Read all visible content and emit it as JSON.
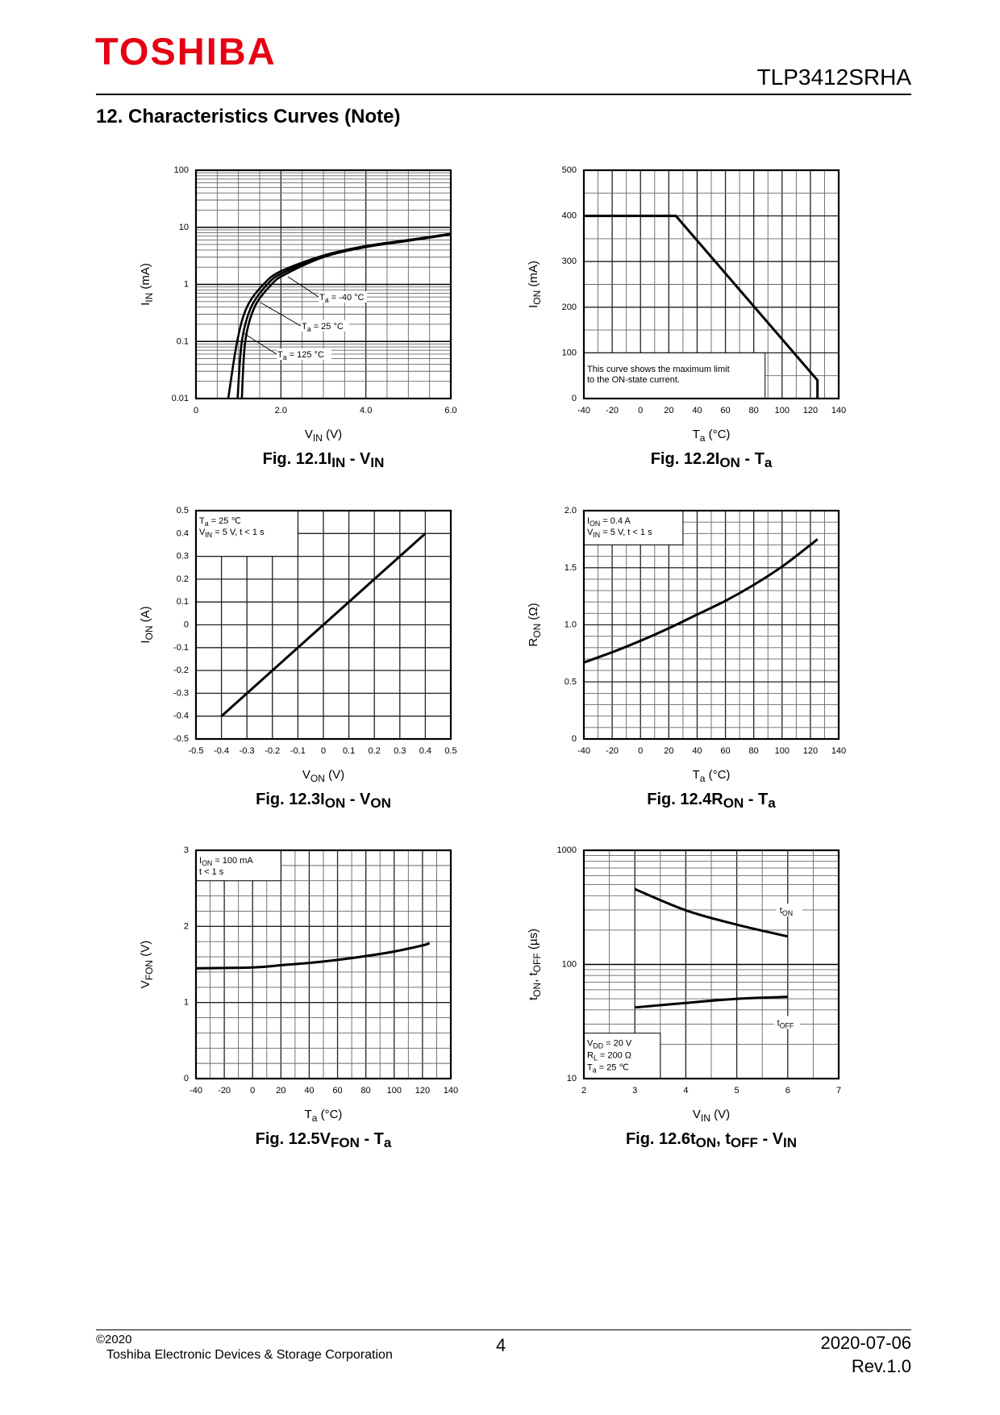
{
  "header": {
    "logo": "TOSHIBA",
    "part_number": "TLP3412SRHA",
    "section_title": "12. Characteristics Curves (Note)"
  },
  "footer": {
    "copyright": "©2020",
    "company": "Toshiba Electronic Devices & Storage Corporation",
    "page": "4",
    "date": "2020-07-06",
    "revision": "Rev.1.0"
  },
  "chart_data": [
    {
      "type": "line",
      "fig": "Fig. 12.1",
      "caption": [
        {
          "t": "I"
        },
        {
          "t": "IN",
          "sub": true
        },
        {
          "t": " - V"
        },
        {
          "t": "IN",
          "sub": true
        }
      ],
      "xlabel": [
        {
          "t": "V"
        },
        {
          "t": "IN",
          "sub": true
        },
        {
          "t": "  (V)"
        }
      ],
      "ylabel": [
        {
          "t": "I"
        },
        {
          "t": "IN",
          "sub": true
        },
        {
          "t": "  (mA)"
        }
      ],
      "xlim": [
        0,
        6
      ],
      "ylim": [
        0.01,
        100
      ],
      "yscale": "log",
      "grid": true,
      "x_ticks": [
        {
          "v": 0,
          "label": "0"
        },
        {
          "v": 2,
          "label": "2.0"
        },
        {
          "v": 4,
          "label": "4.0"
        },
        {
          "v": 6,
          "label": "6.0"
        }
      ],
      "y_ticks": [
        {
          "v": 0.01,
          "label": "0.01"
        },
        {
          "v": 0.1,
          "label": "0.1"
        },
        {
          "v": 1,
          "label": "1"
        },
        {
          "v": 10,
          "label": "10"
        },
        {
          "v": 100,
          "label": "100"
        }
      ],
      "series": [
        {
          "name": [
            {
              "t": "T"
            },
            {
              "t": "a",
              "sub": true
            },
            {
              "t": " = -40 °C"
            }
          ],
          "points": [
            [
              1.08,
              0.01
            ],
            [
              1.16,
              0.1
            ],
            [
              1.38,
              0.4
            ],
            [
              1.78,
              1
            ],
            [
              2.1,
              1.5
            ],
            [
              3,
              3.0
            ],
            [
              4,
              4.5
            ],
            [
              5,
              5.8
            ],
            [
              6,
              7.5
            ]
          ]
        },
        {
          "name": [
            {
              "t": "T"
            },
            {
              "t": "a",
              "sub": true
            },
            {
              "t": " = 25 °C"
            }
          ],
          "points": [
            [
              0.98,
              0.01
            ],
            [
              1.08,
              0.1
            ],
            [
              1.3,
              0.4
            ],
            [
              1.68,
              1
            ],
            [
              2.05,
              1.6
            ],
            [
              3,
              3.1
            ],
            [
              4,
              4.6
            ],
            [
              5,
              5.9
            ],
            [
              6,
              7.6
            ]
          ]
        },
        {
          "name": [
            {
              "t": "T"
            },
            {
              "t": "a",
              "sub": true
            },
            {
              "t": " = 125 °C"
            }
          ],
          "points": [
            [
              0.76,
              0.01
            ],
            [
              0.97,
              0.1
            ],
            [
              1.2,
              0.4
            ],
            [
              1.59,
              1
            ],
            [
              2,
              1.7
            ],
            [
              3,
              3.2
            ],
            [
              4,
              4.7
            ],
            [
              5,
              6.0
            ],
            [
              6,
              7.7
            ]
          ]
        }
      ]
    },
    {
      "type": "line",
      "fig": "Fig. 12.2",
      "caption": [
        {
          "t": "I"
        },
        {
          "t": "ON",
          "sub": true
        },
        {
          "t": " - T"
        },
        {
          "t": "a",
          "sub": true
        }
      ],
      "xlabel": [
        {
          "t": "T"
        },
        {
          "t": "a",
          "sub": true
        },
        {
          "t": "  (°C)"
        }
      ],
      "ylabel": [
        {
          "t": "I"
        },
        {
          "t": "ON",
          "sub": true
        },
        {
          "t": "  (mA)"
        }
      ],
      "xlim": [
        -40,
        140
      ],
      "ylim": [
        0,
        500
      ],
      "yscale": "linear",
      "grid": true,
      "x_ticks": [
        {
          "v": -40,
          "label": "-40"
        },
        {
          "v": -20,
          "label": "-20"
        },
        {
          "v": 0,
          "label": "0"
        },
        {
          "v": 20,
          "label": "20"
        },
        {
          "v": 40,
          "label": "40"
        },
        {
          "v": 60,
          "label": "60"
        },
        {
          "v": 80,
          "label": "80"
        },
        {
          "v": 100,
          "label": "100"
        },
        {
          "v": 120,
          "label": "120"
        },
        {
          "v": 140,
          "label": "140"
        }
      ],
      "y_ticks": [
        {
          "v": 0,
          "label": "0"
        },
        {
          "v": 100,
          "label": "100"
        },
        {
          "v": 200,
          "label": "200"
        },
        {
          "v": 300,
          "label": "300"
        },
        {
          "v": 400,
          "label": "400"
        },
        {
          "v": 500,
          "label": "500"
        }
      ],
      "note": [
        "This curve shows the maximum limit",
        "to the ON-state current."
      ],
      "series": [
        {
          "points": [
            [
              -40,
              400
            ],
            [
              25,
              400
            ],
            [
              125,
              40
            ],
            [
              125,
              0
            ]
          ]
        }
      ]
    },
    {
      "type": "line",
      "fig": "Fig. 12.3",
      "caption": [
        {
          "t": "I"
        },
        {
          "t": "ON",
          "sub": true
        },
        {
          "t": " - V"
        },
        {
          "t": "ON",
          "sub": true
        }
      ],
      "xlabel": [
        {
          "t": "V"
        },
        {
          "t": "ON",
          "sub": true
        },
        {
          "t": "  (V)"
        }
      ],
      "ylabel": [
        {
          "t": "I"
        },
        {
          "t": "ON",
          "sub": true
        },
        {
          "t": "  (A)"
        }
      ],
      "xlim": [
        -0.5,
        0.5
      ],
      "ylim": [
        -0.5,
        0.5
      ],
      "yscale": "linear",
      "grid": true,
      "x_ticks": [
        {
          "v": -0.5,
          "label": "-0.5"
        },
        {
          "v": -0.4,
          "label": "-0.4"
        },
        {
          "v": -0.3,
          "label": "-0.3"
        },
        {
          "v": -0.2,
          "label": "-0.2"
        },
        {
          "v": -0.1,
          "label": "-0.1"
        },
        {
          "v": 0,
          "label": "0"
        },
        {
          "v": 0.1,
          "label": "0.1"
        },
        {
          "v": 0.2,
          "label": "0.2"
        },
        {
          "v": 0.3,
          "label": "0.3"
        },
        {
          "v": 0.4,
          "label": "0.4"
        },
        {
          "v": 0.5,
          "label": "0.5"
        }
      ],
      "y_ticks": [
        {
          "v": -0.5,
          "label": "-0.5"
        },
        {
          "v": -0.4,
          "label": "-0.4"
        },
        {
          "v": -0.3,
          "label": "-0.3"
        },
        {
          "v": -0.2,
          "label": "-0.2"
        },
        {
          "v": -0.1,
          "label": "-0.1"
        },
        {
          "v": 0,
          "label": "0"
        },
        {
          "v": 0.1,
          "label": "0.1"
        },
        {
          "v": 0.2,
          "label": "0.2"
        },
        {
          "v": 0.3,
          "label": "0.3"
        },
        {
          "v": 0.4,
          "label": "0.4"
        },
        {
          "v": 0.5,
          "label": "0.5"
        }
      ],
      "conditions": [
        [
          {
            "t": "T"
          },
          {
            "t": "a",
            "sub": true
          },
          {
            "t": " = 25 ℃"
          }
        ],
        [
          {
            "t": "V"
          },
          {
            "t": "IN",
            "sub": true
          },
          {
            "t": " = 5 V, t < 1 s"
          }
        ]
      ],
      "series": [
        {
          "points": [
            [
              -0.4,
              -0.4
            ],
            [
              0.4,
              0.4
            ]
          ]
        }
      ]
    },
    {
      "type": "line",
      "fig": "Fig. 12.4",
      "caption": [
        {
          "t": "R"
        },
        {
          "t": "ON",
          "sub": true
        },
        {
          "t": " - T"
        },
        {
          "t": "a",
          "sub": true
        }
      ],
      "xlabel": [
        {
          "t": "T"
        },
        {
          "t": "a",
          "sub": true
        },
        {
          "t": "  (°C)"
        }
      ],
      "ylabel": [
        {
          "t": "R"
        },
        {
          "t": "ON",
          "sub": true
        },
        {
          "t": "  (Ω)"
        }
      ],
      "xlim": [
        -40,
        140
      ],
      "ylim": [
        0,
        2.0
      ],
      "yscale": "linear",
      "grid": true,
      "x_ticks": [
        {
          "v": -40,
          "label": "-40"
        },
        {
          "v": -20,
          "label": "-20"
        },
        {
          "v": 0,
          "label": "0"
        },
        {
          "v": 20,
          "label": "20"
        },
        {
          "v": 40,
          "label": "40"
        },
        {
          "v": 60,
          "label": "60"
        },
        {
          "v": 80,
          "label": "80"
        },
        {
          "v": 100,
          "label": "100"
        },
        {
          "v": 120,
          "label": "120"
        },
        {
          "v": 140,
          "label": "140"
        }
      ],
      "y_ticks": [
        {
          "v": 0,
          "label": "0"
        },
        {
          "v": 0.5,
          "label": "0.5"
        },
        {
          "v": 1,
          "label": "1.0"
        },
        {
          "v": 1.5,
          "label": "1.5"
        },
        {
          "v": 2,
          "label": "2.0"
        }
      ],
      "conditions": [
        [
          {
            "t": "I"
          },
          {
            "t": "ON",
            "sub": true
          },
          {
            "t": " = 0.4 A"
          }
        ],
        [
          {
            "t": "V"
          },
          {
            "t": "IN",
            "sub": true
          },
          {
            "t": " = 5 V, t < 1 s"
          }
        ]
      ],
      "series": [
        {
          "points": [
            [
              -40,
              0.67
            ],
            [
              -20,
              0.76
            ],
            [
              0,
              0.86
            ],
            [
              20,
              0.97
            ],
            [
              40,
              1.09
            ],
            [
              60,
              1.21
            ],
            [
              80,
              1.35
            ],
            [
              100,
              1.51
            ],
            [
              120,
              1.7
            ],
            [
              125,
              1.75
            ]
          ]
        }
      ]
    },
    {
      "type": "line",
      "fig": "Fig. 12.5",
      "caption": [
        {
          "t": "V"
        },
        {
          "t": "FON",
          "sub": true
        },
        {
          "t": " - T"
        },
        {
          "t": "a",
          "sub": true
        }
      ],
      "xlabel": [
        {
          "t": "T"
        },
        {
          "t": "a",
          "sub": true
        },
        {
          "t": "  (°C)"
        }
      ],
      "ylabel": [
        {
          "t": "V"
        },
        {
          "t": "FON",
          "sub": true
        },
        {
          "t": "  (V)"
        }
      ],
      "xlim": [
        -40,
        140
      ],
      "ylim": [
        0,
        3
      ],
      "yscale": "linear",
      "grid": true,
      "x_ticks": [
        {
          "v": -40,
          "label": "-40"
        },
        {
          "v": -20,
          "label": "-20"
        },
        {
          "v": 0,
          "label": "0"
        },
        {
          "v": 20,
          "label": "20"
        },
        {
          "v": 40,
          "label": "40"
        },
        {
          "v": 60,
          "label": "60"
        },
        {
          "v": 80,
          "label": "80"
        },
        {
          "v": 100,
          "label": "100"
        },
        {
          "v": 120,
          "label": "120"
        },
        {
          "v": 140,
          "label": "140"
        }
      ],
      "y_ticks": [
        {
          "v": 0,
          "label": "0"
        },
        {
          "v": 1,
          "label": "1"
        },
        {
          "v": 2,
          "label": "2"
        },
        {
          "v": 3,
          "label": "3"
        }
      ],
      "conditions": [
        [
          {
            "t": "I"
          },
          {
            "t": "ON",
            "sub": true
          },
          {
            "t": " = 100 mA"
          }
        ],
        [
          {
            "t": "t < 1 s"
          }
        ]
      ],
      "series": [
        {
          "points": [
            [
              -40,
              1.45
            ],
            [
              0,
              1.46
            ],
            [
              20,
              1.49
            ],
            [
              40,
              1.52
            ],
            [
              60,
              1.56
            ],
            [
              80,
              1.61
            ],
            [
              100,
              1.67
            ],
            [
              120,
              1.75
            ],
            [
              125,
              1.78
            ]
          ]
        }
      ]
    },
    {
      "type": "line",
      "fig": "Fig. 12.6",
      "caption": [
        {
          "t": "t"
        },
        {
          "t": "ON",
          "sub": true
        },
        {
          "t": ", t"
        },
        {
          "t": "OFF",
          "sub": true
        },
        {
          "t": " - V"
        },
        {
          "t": "IN",
          "sub": true
        }
      ],
      "xlabel": [
        {
          "t": "V"
        },
        {
          "t": "IN",
          "sub": true
        },
        {
          "t": "  (V)"
        }
      ],
      "ylabel": [
        {
          "t": "t"
        },
        {
          "t": "ON",
          "sub": true
        },
        {
          "t": ", t"
        },
        {
          "t": "OFF",
          "sub": true
        },
        {
          "t": "  (µs)"
        }
      ],
      "xlim": [
        2,
        7
      ],
      "ylim": [
        10,
        1000
      ],
      "yscale": "log",
      "grid": true,
      "x_ticks": [
        {
          "v": 2,
          "label": "2"
        },
        {
          "v": 3,
          "label": "3"
        },
        {
          "v": 4,
          "label": "4"
        },
        {
          "v": 5,
          "label": "5"
        },
        {
          "v": 6,
          "label": "6"
        },
        {
          "v": 7,
          "label": "7"
        }
      ],
      "y_ticks": [
        {
          "v": 10,
          "label": "10"
        },
        {
          "v": 100,
          "label": "100"
        },
        {
          "v": 1000,
          "label": "1000"
        }
      ],
      "conditions": [
        [
          {
            "t": "V"
          },
          {
            "t": "DD",
            "sub": true
          },
          {
            "t": " = 20 V"
          }
        ],
        [
          {
            "t": "R"
          },
          {
            "t": "L",
            "sub": true
          },
          {
            "t": " = 200 Ω"
          }
        ],
        [
          {
            "t": "T"
          },
          {
            "t": "a",
            "sub": true
          },
          {
            "t": " = 25 ℃"
          }
        ]
      ],
      "series": [
        {
          "name": [
            {
              "t": "t"
            },
            {
              "t": "ON",
              "sub": true
            }
          ],
          "points": [
            [
              3,
              457
            ],
            [
              4,
              298
            ],
            [
              5,
              223
            ],
            [
              6,
              176
            ]
          ]
        },
        {
          "name": [
            {
              "t": "t"
            },
            {
              "t": "OFF",
              "sub": true
            }
          ],
          "points": [
            [
              3,
              42
            ],
            [
              4,
              46
            ],
            [
              5,
              50
            ],
            [
              6,
              52
            ]
          ]
        }
      ]
    }
  ]
}
